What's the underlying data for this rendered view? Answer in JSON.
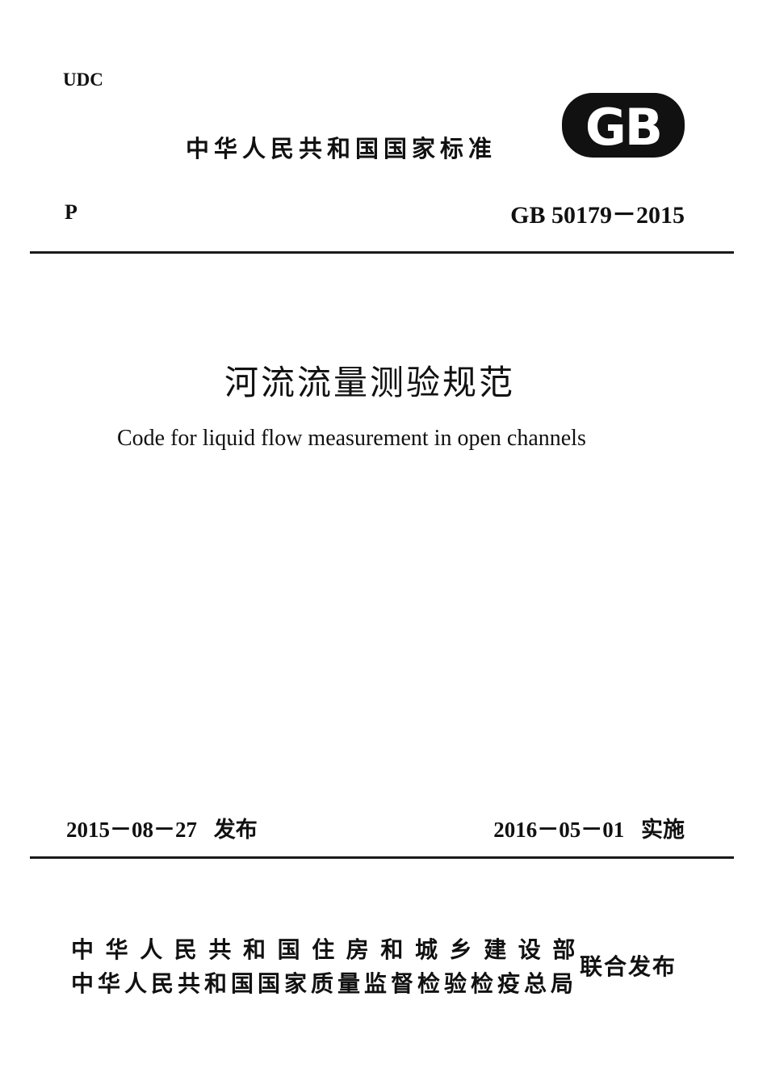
{
  "header": {
    "udc": "UDC",
    "standard_type": "中华人民共和国国家标准",
    "logo_text": "GB",
    "classification": "P",
    "standard_number": "GB 50179－2015"
  },
  "title": {
    "chinese": "河流流量测验规范",
    "english": "Code for liquid flow measurement in open channels"
  },
  "dates": {
    "issue_date": "2015－08－27",
    "issue_label": "发布",
    "effective_date": "2016－05－01",
    "effective_label": "实施"
  },
  "issuers": {
    "line1": "中华人民共和国住房和城乡建设部",
    "line2": "中华人民共和国国家质量监督检验检疫总局",
    "joint_label": "联合发布"
  }
}
